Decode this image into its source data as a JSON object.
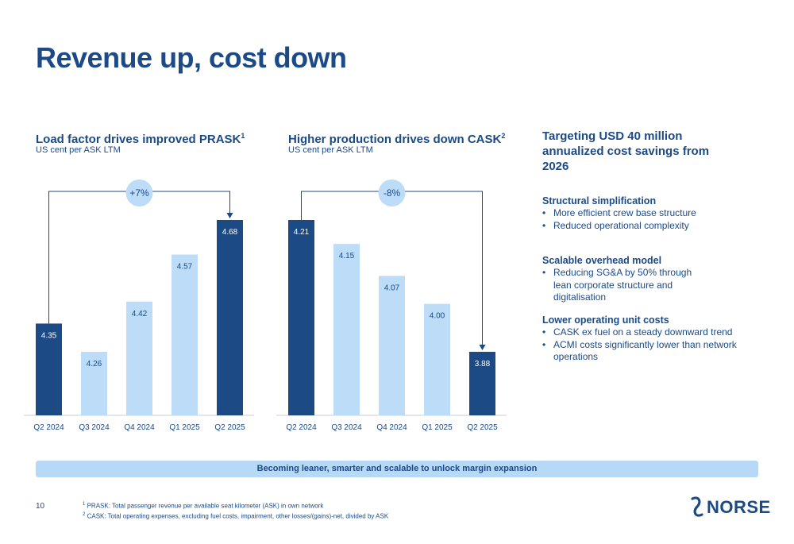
{
  "page": {
    "title": "Revenue up, cost down",
    "page_number": "10",
    "banner": "Becoming leaner, smarter and scalable to unlock margin expansion",
    "footnotes": [
      {
        "mark": "1",
        "text": "PRASK: Total passenger revenue per available seat kilometer (ASK) in own network"
      },
      {
        "mark": "2",
        "text": "CASK: Total operating expenses, excluding fuel costs, impairment, other losses/(gains)-net, divided by ASK"
      }
    ],
    "logo_text": "NORSE"
  },
  "panels": {
    "prask": {
      "title": "Load factor drives improved PRASK",
      "sup": "1",
      "subtitle": "US cent per ASK LTM"
    },
    "cask": {
      "title": "Higher production drives down CASK",
      "sup": "2",
      "subtitle": "US cent per ASK LTM"
    }
  },
  "right": {
    "title": "Targeting USD 40 million annualized cost savings from 2026",
    "sections": [
      {
        "heading": "Structural simplification",
        "bullets": [
          "More efficient crew base structure",
          "Reduced operational complexity"
        ]
      },
      {
        "heading": "Scalable overhead model",
        "bullets": [
          "Reducing SG&A by 50% through lean corporate structure and digitalisation"
        ]
      },
      {
        "heading": "Lower operating unit costs",
        "bullets": [
          "CASK ex fuel on a steady downward trend",
          "ACMI costs significantly lower than network operations"
        ]
      }
    ]
  },
  "chart_data": [
    {
      "type": "bar",
      "title": "Load factor drives improved PRASK",
      "subtitle": "US cent per ASK LTM",
      "categories": [
        "Q2 2024",
        "Q3 2024",
        "Q4 2024",
        "Q1 2025",
        "Q2 2025"
      ],
      "values": [
        4.35,
        4.26,
        4.42,
        4.57,
        4.68
      ],
      "highlighted": [
        true,
        false,
        false,
        false,
        true
      ],
      "change_label": "+7%",
      "colors": {
        "highlight": "#1b4a85",
        "normal": "#bcdcf8",
        "badge": "#bcdcf8"
      }
    },
    {
      "type": "bar",
      "title": "Higher production drives down CASK",
      "subtitle": "US cent per ASK LTM",
      "categories": [
        "Q2 2024",
        "Q3 2024",
        "Q4 2024",
        "Q1 2025",
        "Q2 2025"
      ],
      "values": [
        4.21,
        4.15,
        4.07,
        4.0,
        3.88
      ],
      "value_labels": [
        "4.21",
        "4.15",
        "4.07",
        "4.00",
        "3.88"
      ],
      "highlighted": [
        true,
        false,
        false,
        false,
        true
      ],
      "change_label": "-8%",
      "colors": {
        "highlight": "#1b4a85",
        "normal": "#bcdcf8",
        "badge": "#bcdcf8"
      }
    }
  ]
}
